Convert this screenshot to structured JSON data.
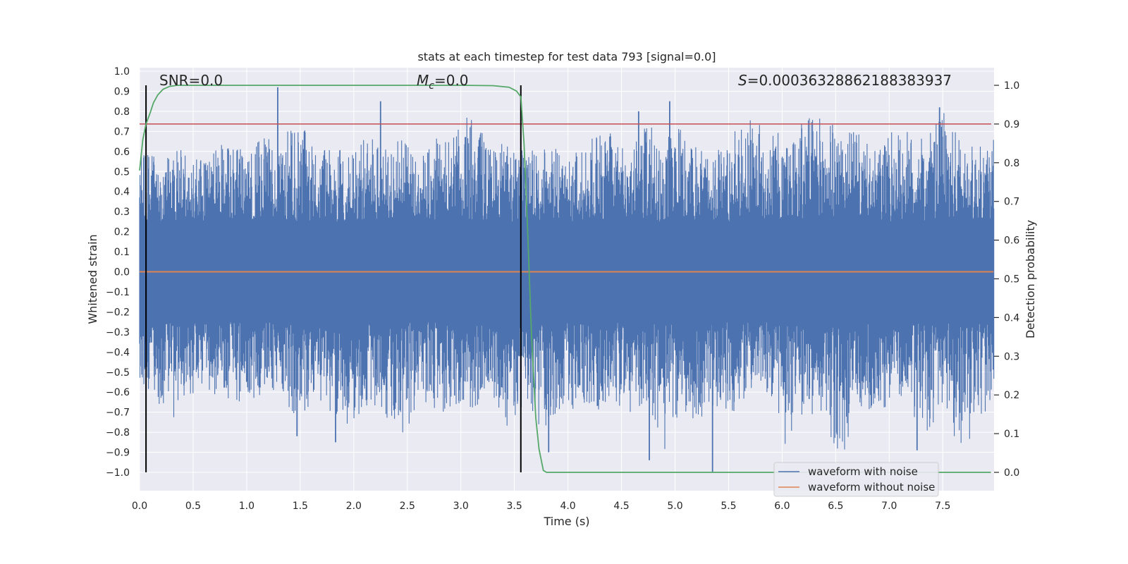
{
  "chart_data": {
    "type": "line",
    "title": "stats at each timestep for test data 793 [signal=0.0]",
    "xlabel": "Time (s)",
    "ylabel": "Whitened strain",
    "y2label": "Detection probability",
    "xlim": [
      0.0,
      8.0
    ],
    "ylim": [
      -1.07,
      1.05
    ],
    "y2lim": [
      -0.05,
      1.04
    ],
    "x_ticks": [
      "0.0",
      "0.5",
      "1.0",
      "1.5",
      "2.0",
      "2.5",
      "3.0",
      "3.5",
      "4.0",
      "4.5",
      "5.0",
      "5.5",
      "6.0",
      "6.5",
      "7.0",
      "7.5"
    ],
    "y_ticks": [
      "1.0",
      "0.9",
      "0.8",
      "0.7",
      "0.6",
      "0.5",
      "0.4",
      "0.3",
      "0.2",
      "0.1",
      "0.0",
      "−0.1",
      "−0.2",
      "−0.3",
      "−0.4",
      "−0.5",
      "−0.6",
      "−0.7",
      "−0.8",
      "−0.9",
      "−1.0"
    ],
    "y2_ticks": [
      "1.0",
      "0.9",
      "0.8",
      "0.7",
      "0.6",
      "0.5",
      "0.4",
      "0.3",
      "0.2",
      "0.1",
      "0.0"
    ],
    "grid": true,
    "legend_position": "bottom-right",
    "annotations": {
      "snr_prefix": "SNR=",
      "snr_value": "0.0",
      "mc_symbol": "M",
      "mc_subscript": "c",
      "mc_value": "=0.0",
      "s_symbol": "S",
      "s_value": "=0.0003632886218838393​7"
    },
    "vertical_markers_x": [
      0.06,
      3.56
    ],
    "threshold_probability": 0.9,
    "series": [
      {
        "name": "waveform with noise",
        "color": "#4c72b0",
        "noise_envelope_pos": [
          0.62,
          0.57,
          0.6,
          0.63,
          0.58,
          0.66,
          0.6,
          0.7,
          0.63,
          0.78,
          0.62,
          0.65,
          0.6,
          0.68,
          0.62,
          0.66,
          0.57,
          0.7,
          0.68,
          0.82,
          0.63,
          0.66,
          0.6,
          0.64,
          0.62,
          0.6,
          0.69,
          0.7,
          0.6,
          0.74,
          0.68,
          0.72,
          0.6,
          0.64,
          0.7,
          0.76,
          0.73,
          0.66,
          0.78,
          0.78,
          0.72,
          0.7,
          0.6,
          0.7,
          0.7,
          0.66,
          0.8,
          0.66,
          0.62,
          0.7
        ],
        "noise_envelope_neg": [
          -0.6,
          -0.65,
          -0.73,
          -0.62,
          -0.6,
          -0.68,
          -0.66,
          -0.62,
          -0.6,
          -0.75,
          -0.64,
          -0.7,
          -0.82,
          -0.69,
          -0.72,
          -0.85,
          -0.64,
          -0.72,
          -0.66,
          -0.7,
          -0.6,
          -0.8,
          -0.67,
          -0.79,
          -0.7,
          -0.68,
          -0.72,
          -0.64,
          -0.72,
          -0.66,
          -0.9,
          -0.7,
          -0.75,
          -0.68,
          -0.7,
          -0.62,
          -0.6,
          -0.93,
          -0.72,
          -0.7,
          -1.0,
          -0.68,
          -0.7,
          -0.66,
          -0.7,
          -0.8,
          -0.72,
          -0.89,
          -0.8,
          -0.62
        ],
        "peaks": [
          {
            "x": 1.29,
            "y": 0.92
          },
          {
            "x": 2.25,
            "y": 0.85
          },
          {
            "x": 4.66,
            "y": 0.8
          },
          {
            "x": 4.95,
            "y": 0.85
          },
          {
            "x": 7.47,
            "y": 0.82
          },
          {
            "x": 1.47,
            "y": -0.82
          },
          {
            "x": 1.83,
            "y": -0.85
          },
          {
            "x": 3.82,
            "y": -0.9
          },
          {
            "x": 4.76,
            "y": -0.94
          },
          {
            "x": 5.35,
            "y": -1.0
          },
          {
            "x": 7.26,
            "y": -0.89
          }
        ]
      },
      {
        "name": "waveform without noise",
        "color": "#dd8452",
        "x": [
          0.0,
          8.0
        ],
        "y": [
          0.0,
          0.0
        ]
      },
      {
        "name": "detection probability",
        "color": "#55a868",
        "axis": "right",
        "x": [
          0.0,
          0.03,
          0.06,
          0.1,
          0.13,
          0.17,
          0.22,
          0.28,
          0.35,
          0.5,
          1.0,
          2.0,
          3.0,
          3.3,
          3.45,
          3.52,
          3.56,
          3.59,
          3.62,
          3.66,
          3.7,
          3.73,
          3.77,
          3.8,
          3.9,
          4.5,
          6.0,
          7.95
        ],
        "y": [
          0.78,
          0.86,
          0.9,
          0.93,
          0.955,
          0.975,
          0.99,
          0.997,
          1.0,
          1.0,
          1.0,
          1.0,
          1.0,
          0.999,
          0.995,
          0.985,
          0.97,
          0.85,
          0.65,
          0.35,
          0.14,
          0.06,
          0.005,
          0.0,
          0.0,
          0.0,
          0.0,
          0.0
        ]
      }
    ]
  },
  "colors": {
    "axes_bg": "#eaeaf2",
    "grid": "#ffffff",
    "threshold": "#c44e52",
    "markers": "#000000"
  }
}
